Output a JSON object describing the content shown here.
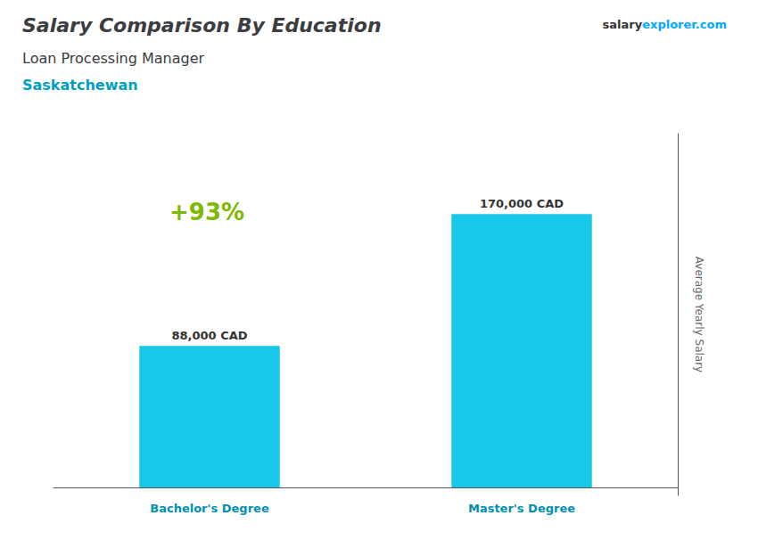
{
  "chart_data": {
    "type": "bar",
    "title": "Salary Comparison By Education",
    "subtitle": "Loan Processing Manager",
    "y_label": "Average Yearly Salary",
    "annotations": [
      "Saskatchewan",
      "salary",
      "explorer.com",
      "+93%"
    ],
    "categories": [
      "Bachelor's Degree",
      "Master's Degree"
    ],
    "values": [
      88000,
      170000
    ],
    "value_labels": [
      "88,000 CAD",
      "170,000 CAD"
    ],
    "color": "#18C8E8",
    "ylim": [
      -5000,
      220000
    ],
    "grid": false,
    "data_labels": true,
    "tick_labels": "x"
  }
}
